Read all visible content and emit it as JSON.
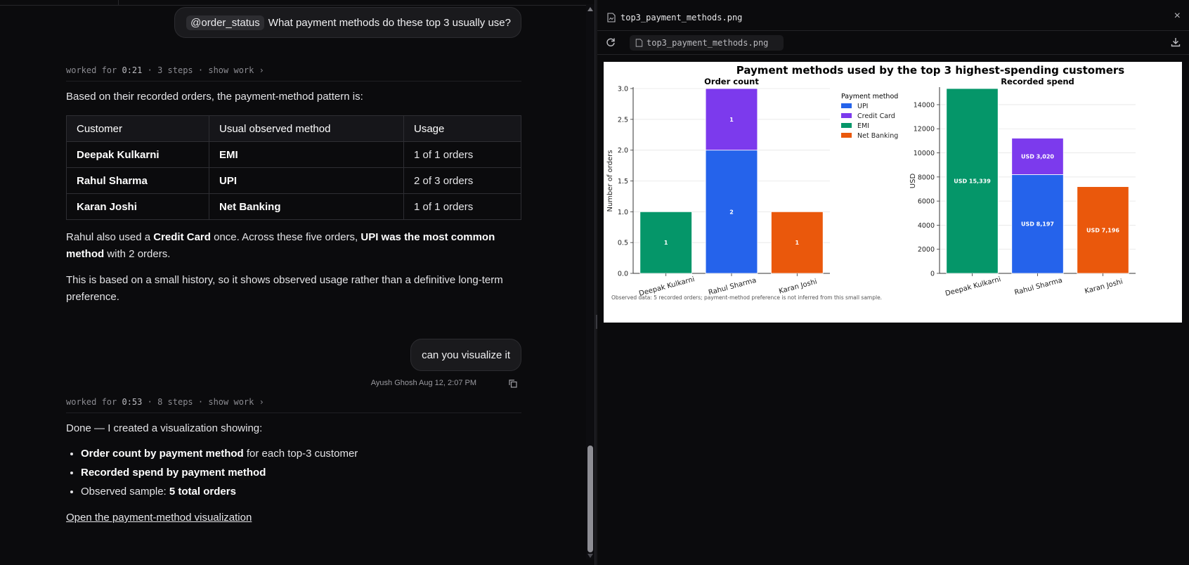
{
  "chat": {
    "msg1": {
      "mention": "@order_status",
      "text": "What payment methods do these top 3 usually use?"
    },
    "worked1": {
      "prefix": "worked for",
      "time": "0:21",
      "steps": "· 3 steps ·",
      "show": "show work ›"
    },
    "intro": "Based on their recorded orders, the payment-method pattern is:",
    "table": {
      "headers": [
        "Customer",
        "Usual observed method",
        "Usage"
      ],
      "rows": [
        [
          "Deepak Kulkarni",
          "EMI",
          "1 of 1 orders"
        ],
        [
          "Rahul Sharma",
          "UPI",
          "2 of 3 orders"
        ],
        [
          "Karan Joshi",
          "Net Banking",
          "1 of 1 orders"
        ]
      ]
    },
    "para2": {
      "a": "Rahul also used a ",
      "b": "Credit Card",
      "c": " once. Across these five orders, ",
      "d": "UPI was the most common method",
      "e": " with 2 orders."
    },
    "para3": "This is based on a small history, so it shows observed usage rather than a definitive long-term preference.",
    "msg2": {
      "text": "can you visualize it",
      "meta": "Ayush Ghosh Aug 12, 2:07 PM"
    },
    "worked2": {
      "prefix": "worked for",
      "time": "0:53",
      "steps": "· 8 steps ·",
      "show": "show work ›"
    },
    "done_intro": "Done — I created a visualization showing:",
    "bullets": [
      {
        "strong": "Order count by payment method",
        "rest": " for each top-3 customer"
      },
      {
        "strong": "Recorded spend by payment method",
        "rest": ""
      },
      {
        "pre": "Observed sample: ",
        "strong": "5 total orders"
      }
    ],
    "link": "Open the payment-method visualization"
  },
  "preview": {
    "title": "top3_payment_methods.png",
    "url": "top3_payment_methods.png",
    "close": "×"
  },
  "colors": {
    "UPI": "#2563eb",
    "Credit Card": "#7c3aed",
    "EMI": "#059669",
    "Net Banking": "#ea580c"
  },
  "chart_data": {
    "suptitle": "Payment methods used by the top 3 highest-spending customers",
    "footnote": "Observed data: 5 recorded orders; payment-method preference is not inferred from this small sample.",
    "legend": {
      "title": "Payment method",
      "entries": [
        "UPI",
        "Credit Card",
        "EMI",
        "Net Banking"
      ],
      "placement": "right of left panel"
    },
    "charts": [
      {
        "type": "bar",
        "stacked": true,
        "title": "Order count",
        "ylabel": "Number of orders",
        "ylim": [
          0,
          3
        ],
        "yticks": [
          "0.0",
          "0.5",
          "1.0",
          "1.5",
          "2.0",
          "2.5",
          "3.0"
        ],
        "categories": [
          "Deepak Kulkarni",
          "Rahul Sharma",
          "Karan Joshi"
        ],
        "series": [
          {
            "name": "UPI",
            "values": [
              0,
              2,
              0
            ]
          },
          {
            "name": "Credit Card",
            "values": [
              0,
              1,
              0
            ]
          },
          {
            "name": "EMI",
            "values": [
              1,
              0,
              0
            ]
          },
          {
            "name": "Net Banking",
            "values": [
              0,
              0,
              1
            ]
          }
        ],
        "labels": [
          {
            "cat": 0,
            "series": "EMI",
            "text": "1"
          },
          {
            "cat": 1,
            "series": "UPI",
            "text": "2"
          },
          {
            "cat": 1,
            "series": "Credit Card",
            "text": "1"
          },
          {
            "cat": 2,
            "series": "Net Banking",
            "text": "1"
          }
        ]
      },
      {
        "type": "bar",
        "stacked": true,
        "title": "Recorded spend",
        "ylabel": "USD",
        "ylim": [
          0,
          15339
        ],
        "yticks": [
          "0",
          "2000",
          "4000",
          "6000",
          "8000",
          "10000",
          "12000",
          "14000"
        ],
        "categories": [
          "Deepak Kulkarni",
          "Rahul Sharma",
          "Karan Joshi"
        ],
        "series": [
          {
            "name": "UPI",
            "values": [
              0,
              8197,
              0
            ]
          },
          {
            "name": "Credit Card",
            "values": [
              0,
              3020,
              0
            ]
          },
          {
            "name": "EMI",
            "values": [
              15339,
              0,
              0
            ]
          },
          {
            "name": "Net Banking",
            "values": [
              0,
              0,
              7196
            ]
          }
        ],
        "labels": [
          {
            "cat": 0,
            "series": "EMI",
            "text": "USD 15,339"
          },
          {
            "cat": 1,
            "series": "UPI",
            "text": "USD 8,197"
          },
          {
            "cat": 1,
            "series": "Credit Card",
            "text": "USD 3,020"
          },
          {
            "cat": 2,
            "series": "Net Banking",
            "text": "USD 7,196"
          }
        ]
      }
    ]
  }
}
